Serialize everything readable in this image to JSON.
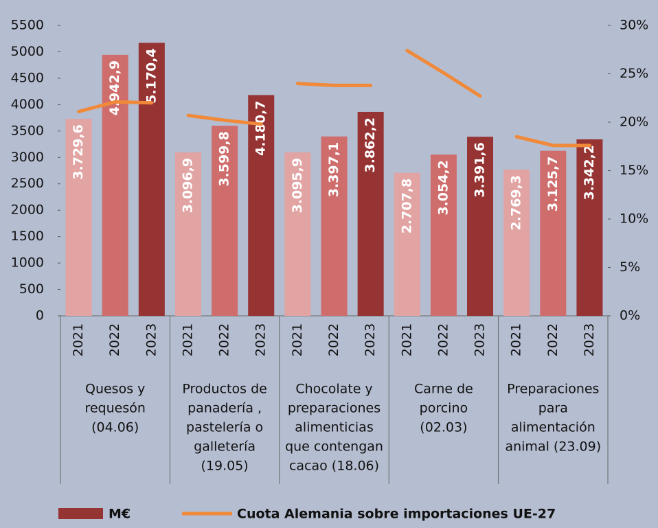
{
  "chart_data": {
    "type": "bar",
    "categories": [
      "2021",
      "2022",
      "2023",
      "2021",
      "2022",
      "2023",
      "2021",
      "2022",
      "2023",
      "2021",
      "2022",
      "2023",
      "2021",
      "2022",
      "2023"
    ],
    "groups": [
      [
        "Quesos y",
        "requesón",
        "(04.06)"
      ],
      [
        "Productos de",
        "panadería ,",
        "pastelería o",
        "galletería",
        "(19.05)"
      ],
      [
        "Chocolate y",
        "preparaciones",
        "alimenticias",
        "que contengan",
        "cacao  (18.06)"
      ],
      [
        "Carne de",
        "porcino",
        "(02.03)"
      ],
      [
        "Preparaciones",
        "para",
        "alimentación",
        "animal  (23.09)"
      ]
    ],
    "bar_colors": [
      "#e2a3a3",
      "#cf6d6d",
      "#963333"
    ],
    "series": [
      {
        "name": "M€",
        "color": "#963333",
        "values": [
          3729.6,
          4942.9,
          5170.4,
          3096.9,
          3599.8,
          4180.7,
          3095.9,
          3397.1,
          3862.2,
          2707.8,
          3054.2,
          3391.6,
          2769.3,
          3125.7,
          3342.2
        ],
        "value_labels": [
          "3.729,6",
          "4.942,9",
          "5.170,4",
          "3.096,9",
          "3.599,8",
          "4.180,7",
          "3.095,9",
          "3.397,1",
          "3.862,2",
          "2.707,8",
          "3.054,2",
          "3.391,6",
          "2.769,3",
          "3.125,7",
          "3.342,2"
        ]
      },
      {
        "name": "Cuota Alemania sobre importaciones UE-27",
        "color": "#f08a3a",
        "axis": "y2",
        "type": "line",
        "values": [
          21.1,
          22.1,
          22.0,
          20.7,
          20.2,
          19.8,
          24.0,
          23.8,
          23.8,
          27.4,
          25.1,
          22.7,
          18.5,
          17.6,
          17.6
        ]
      }
    ],
    "ylim": [
      0,
      5500
    ],
    "yticks": [
      0,
      500,
      1000,
      1500,
      2000,
      2500,
      3000,
      3500,
      4000,
      4500,
      5000,
      5500
    ],
    "y2lim": [
      0,
      30
    ],
    "y2ticks": [
      {
        "value": 0,
        "label": "0%"
      },
      {
        "value": 5,
        "label": "5%"
      },
      {
        "value": 10,
        "label": "10%"
      },
      {
        "value": 15,
        "label": "15%"
      },
      {
        "value": 20,
        "label": "20%"
      },
      {
        "value": 25,
        "label": "25%"
      },
      {
        "value": 30,
        "label": "30%"
      }
    ],
    "legend": "bottom"
  }
}
